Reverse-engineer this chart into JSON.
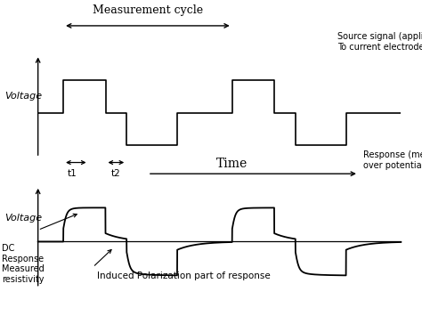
{
  "bg_color": "#ffffff",
  "top_panel": {
    "voltage_label": "Voltage",
    "measurement_cycle_label": "Measurement cycle",
    "source_signal_label": "Source signal (applied\nTo current electrodes)",
    "t1_label": "t1",
    "t2_label": "t2"
  },
  "bottom_panel": {
    "voltage_label": "Voltage",
    "time_label": "Time",
    "response_label": "Response (measured\nover potential electrodes)",
    "dc_response_label": "DC\nResponse\nMeasured\nresistivity",
    "ip_label": "Induced Polarization part of response"
  },
  "line_color": "#000000",
  "text_color": "#000000"
}
